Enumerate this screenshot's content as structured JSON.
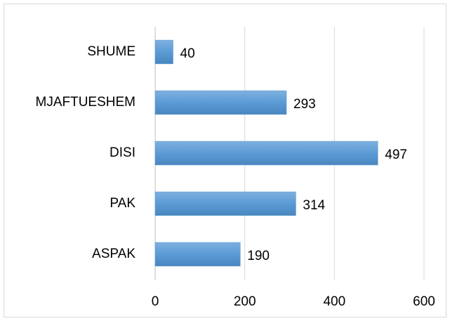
{
  "chart_data": {
    "type": "bar",
    "orientation": "horizontal",
    "categories": [
      "SHUME",
      "MJAFTUESHEM",
      "DISI",
      "PAK",
      "ASPAK"
    ],
    "values": [
      40,
      293,
      497,
      314,
      190
    ],
    "color": "#5b9bd5",
    "xlim": [
      0,
      600
    ],
    "xticks": [
      0,
      200,
      400,
      600
    ],
    "grid": true
  }
}
